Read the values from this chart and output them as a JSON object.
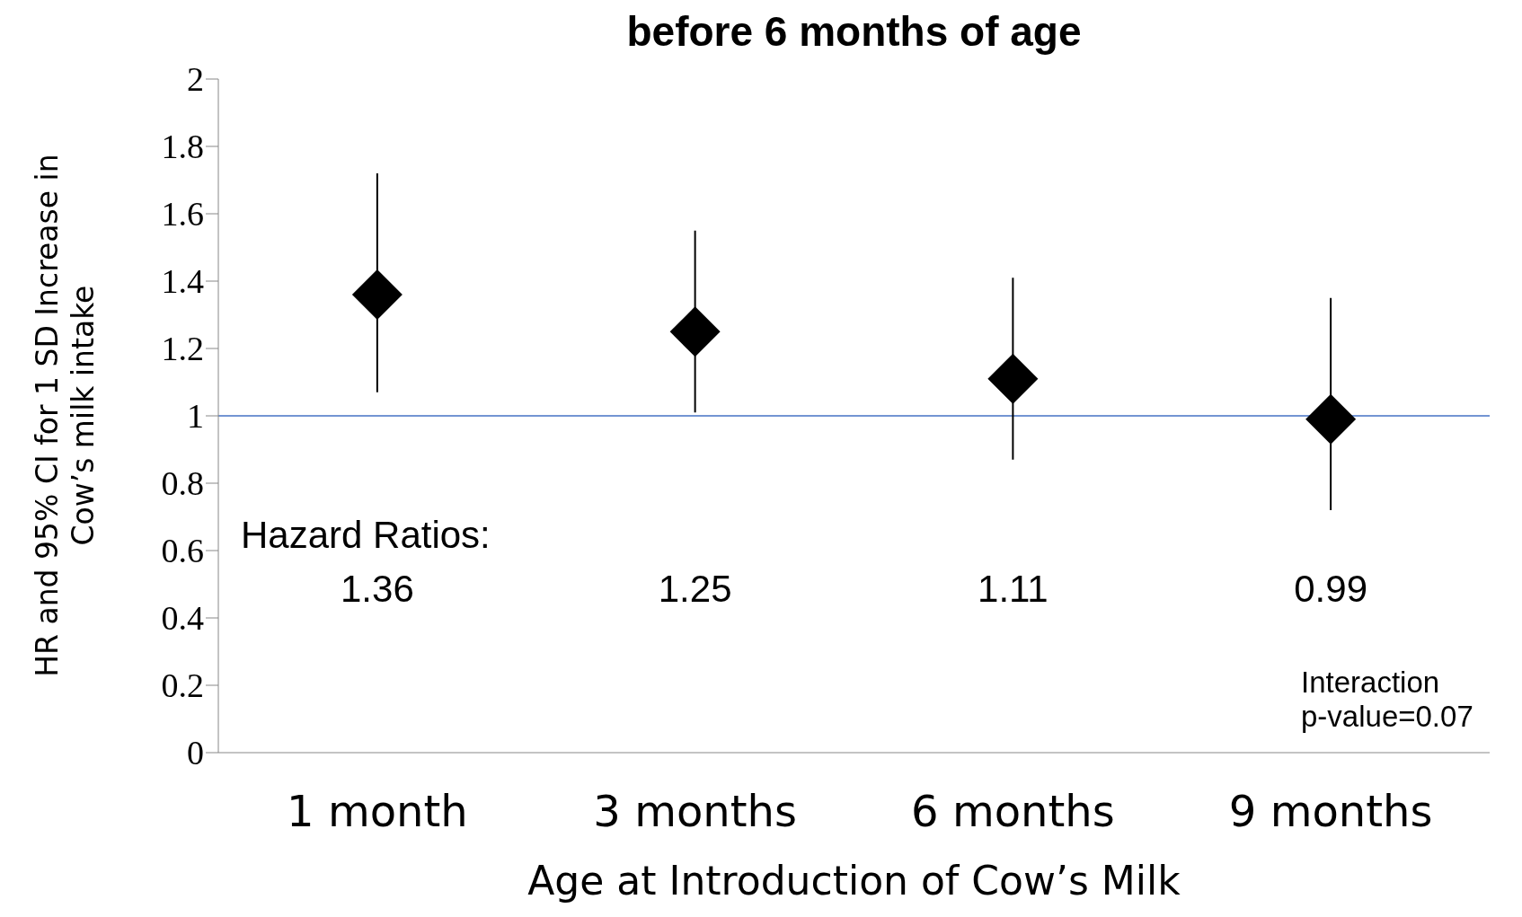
{
  "chart_data": {
    "type": "scatter",
    "title": "before 6 months of age",
    "xlabel": "Age at Introduction of Cow’s Milk",
    "ylabel": "HR and 95% CI for 1 SD Increase in Cow’s milk intake",
    "categories": [
      "1 month",
      "3 months",
      "6 months",
      "9 months"
    ],
    "values": [
      1.36,
      1.25,
      1.11,
      0.99
    ],
    "errors": [
      [
        1.07,
        1.72
      ],
      [
        1.01,
        1.55
      ],
      [
        0.87,
        1.41
      ],
      [
        0.72,
        1.35
      ]
    ],
    "color": "#000000",
    "marker": "diamond",
    "ylim": [
      0,
      2
    ],
    "yticks": [
      0,
      0.2,
      0.4,
      0.6,
      0.8,
      1,
      1.2,
      1.4,
      1.6,
      1.8,
      2
    ],
    "ref_lines": [
      {
        "axis": "y",
        "value": 1,
        "color": "#4472c4"
      }
    ],
    "annotations": [
      "Hazard Ratios:",
      "Interaction\np-value=0.07",
      "1.36",
      "1.25",
      "1.11",
      "0.99"
    ],
    "grid": false,
    "legend": false
  }
}
